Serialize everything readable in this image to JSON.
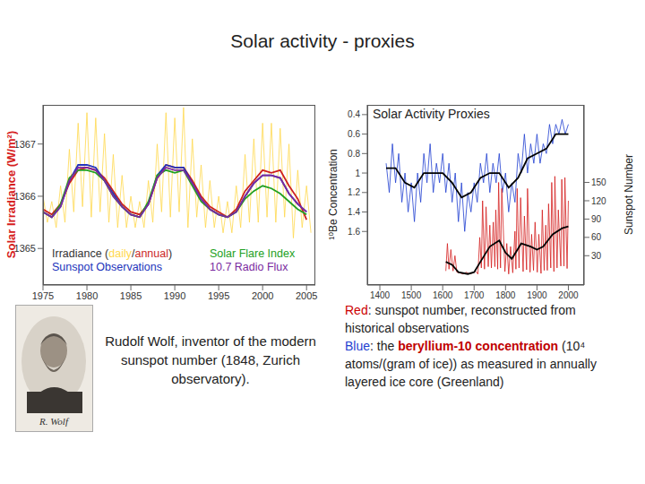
{
  "title": "Solar activity - proxies",
  "chart_data": [
    {
      "type": "line",
      "ylabel": "Solar Irradiance (W/m²)",
      "xlim": [
        1975,
        2006
      ],
      "xticks": [
        1975,
        1980,
        1985,
        1990,
        1995,
        2000,
        2005
      ],
      "ylim": [
        1364.3,
        1367.75
      ],
      "yticks": [
        1365,
        1366,
        1367
      ],
      "legend": "bottom",
      "legend_entries": [
        "Irradiance (daily/annual)",
        "Sunspot Observations",
        "Solar Flare Index",
        "10.7 Radio Flux"
      ],
      "series": [
        {
          "name": "daily",
          "color": "#ffd84d",
          "line_style": "thin",
          "x": [
            1975,
            1975.5,
            1976,
            1976.5,
            1977,
            1977.5,
            1978,
            1978.5,
            1979,
            1979.5,
            1980,
            1980.5,
            1981,
            1981.5,
            1982,
            1982.5,
            1983,
            1983.5,
            1984,
            1984.5,
            1985,
            1985.5,
            1986,
            1986.5,
            1987,
            1987.5,
            1988,
            1988.5,
            1989,
            1989.5,
            1990,
            1990.5,
            1991,
            1991.5,
            1992,
            1992.5,
            1993,
            1993.5,
            1994,
            1994.5,
            1995,
            1995.5,
            1996,
            1996.5,
            1997,
            1997.5,
            1998,
            1998.5,
            1999,
            1999.5,
            2000,
            2000.5,
            2001,
            2001.5,
            2002,
            2002.5,
            2003,
            2003.5,
            2004,
            2004.5,
            2005,
            2005.5
          ],
          "values": [
            1366.0,
            1365.5,
            1365.9,
            1365.4,
            1366.2,
            1365.5,
            1366.9,
            1365.7,
            1367.4,
            1365.8,
            1367.6,
            1365.6,
            1367.5,
            1365.7,
            1367.2,
            1365.5,
            1366.8,
            1365.4,
            1366.4,
            1365.4,
            1366.0,
            1365.4,
            1365.9,
            1365.4,
            1366.3,
            1365.5,
            1367.0,
            1365.7,
            1367.6,
            1365.6,
            1367.5,
            1365.7,
            1367.7,
            1365.4,
            1367.1,
            1365.6,
            1366.6,
            1365.4,
            1366.3,
            1365.4,
            1366.0,
            1365.3,
            1365.9,
            1365.3,
            1366.2,
            1365.4,
            1366.8,
            1365.5,
            1367.1,
            1365.5,
            1367.4,
            1365.6,
            1367.4,
            1365.5,
            1367.3,
            1365.6,
            1367.0,
            1365.2,
            1366.5,
            1365.4,
            1366.2,
            1365.3
          ]
        },
        {
          "name": "annual",
          "color": "#cc1f1f",
          "line_style": "solid",
          "x": [
            1975,
            1976,
            1977,
            1978,
            1979,
            1980,
            1981,
            1982,
            1983,
            1984,
            1985,
            1986,
            1987,
            1988,
            1989,
            1990,
            1991,
            1992,
            1993,
            1994,
            1995,
            1996,
            1997,
            1998,
            1999,
            2000,
            2001,
            2002,
            2003,
            2004,
            2005
          ],
          "values": [
            1365.75,
            1365.65,
            1365.85,
            1366.25,
            1366.5,
            1366.55,
            1366.5,
            1366.35,
            1366.1,
            1365.85,
            1365.7,
            1365.65,
            1365.85,
            1366.35,
            1366.6,
            1366.55,
            1366.55,
            1366.3,
            1366.0,
            1365.8,
            1365.7,
            1365.6,
            1365.75,
            1366.1,
            1366.3,
            1366.5,
            1366.45,
            1366.5,
            1366.2,
            1365.95,
            1365.55
          ]
        },
        {
          "name": "Sunspot Observations",
          "color": "#2233bb",
          "line_style": "solid",
          "x": [
            1975,
            1976,
            1977,
            1978,
            1979,
            1980,
            1981,
            1982,
            1983,
            1984,
            1985,
            1986,
            1987,
            1988,
            1989,
            1990,
            1991,
            1992,
            1993,
            1994,
            1995,
            1996,
            1997,
            1998,
            1999,
            2000,
            2001,
            2002,
            2003,
            2004,
            2005
          ],
          "values": [
            1365.7,
            1365.6,
            1365.8,
            1366.3,
            1366.6,
            1366.6,
            1366.55,
            1366.3,
            1366.05,
            1365.8,
            1365.65,
            1365.6,
            1365.85,
            1366.4,
            1366.6,
            1366.55,
            1366.55,
            1366.25,
            1365.95,
            1365.75,
            1365.65,
            1365.6,
            1365.7,
            1366.0,
            1366.25,
            1366.4,
            1366.4,
            1366.35,
            1366.05,
            1365.85,
            1365.7
          ]
        },
        {
          "name": "Solar Flare Index",
          "color": "#22a022",
          "line_style": "solid",
          "x": [
            1975,
            1976,
            1977,
            1978,
            1979,
            1980,
            1981,
            1982,
            1983,
            1984,
            1985,
            1986,
            1987,
            1988,
            1989,
            1990,
            1991,
            1992,
            1993,
            1994,
            1995,
            1996,
            1997,
            1998,
            1999,
            2000,
            2001,
            2002,
            2003,
            2004,
            2005
          ],
          "values": [
            1365.7,
            1365.6,
            1365.85,
            1366.35,
            1366.5,
            1366.5,
            1366.45,
            1366.3,
            1366.0,
            1365.8,
            1365.65,
            1365.6,
            1365.9,
            1366.4,
            1366.5,
            1366.45,
            1366.5,
            1366.2,
            1365.9,
            1365.75,
            1365.65,
            1365.6,
            1365.7,
            1365.95,
            1366.1,
            1366.2,
            1366.15,
            1366.05,
            1365.9,
            1365.75,
            1365.65
          ]
        },
        {
          "name": "10.7 Radio Flux",
          "color": "#7a2aa0",
          "line_style": "solid",
          "x": [
            1975,
            1976,
            1977,
            1978,
            1979,
            1980,
            1981,
            1982,
            1983,
            1984,
            1985,
            1986,
            1987,
            1988,
            1989,
            1990,
            1991,
            1992,
            1993,
            1994,
            1995,
            1996,
            1997,
            1998,
            1999,
            2000,
            2001,
            2002,
            2003,
            2004,
            2005
          ],
          "values": [
            1365.7,
            1365.6,
            1365.8,
            1366.3,
            1366.55,
            1366.55,
            1366.5,
            1366.3,
            1366.0,
            1365.8,
            1365.65,
            1365.6,
            1365.85,
            1366.35,
            1366.55,
            1366.5,
            1366.5,
            1366.25,
            1365.95,
            1365.75,
            1365.65,
            1365.6,
            1365.7,
            1366.0,
            1366.25,
            1366.4,
            1366.4,
            1366.35,
            1366.05,
            1365.85,
            1365.7
          ]
        }
      ]
    },
    {
      "type": "line",
      "title": "Solar Activity Proxies",
      "ylabel": "¹⁰Be Concentration",
      "y2label": "Sunspot Number",
      "xlim": [
        1360,
        2050
      ],
      "xticks": [
        1400,
        1500,
        1600,
        1700,
        1800,
        1900,
        2000
      ],
      "ylim": [
        2.15,
        0.3
      ],
      "yticks": [
        0.4,
        0.6,
        0.8,
        1,
        1.2,
        1.4,
        1.6
      ],
      "y2lim": [
        -18,
        277
      ],
      "y2ticks": [
        30,
        60,
        90,
        120,
        150
      ],
      "series": [
        {
          "color": "#1f3fd0",
          "line_style": "thin",
          "x": [
            1420,
            1430,
            1440,
            1450,
            1460,
            1470,
            1480,
            1490,
            1500,
            1510,
            1520,
            1530,
            1540,
            1550,
            1560,
            1570,
            1580,
            1590,
            1600,
            1610,
            1620,
            1630,
            1640,
            1650,
            1660,
            1670,
            1680,
            1690,
            1700,
            1710,
            1720,
            1730,
            1740,
            1750,
            1760,
            1770,
            1780,
            1790,
            1800,
            1810,
            1820,
            1830,
            1840,
            1850,
            1860,
            1870,
            1880,
            1890,
            1900,
            1910,
            1920,
            1930,
            1940,
            1950,
            1960,
            1970,
            1980,
            1990,
            2000
          ],
          "values": [
            0.9,
            1.2,
            0.7,
            1.1,
            0.8,
            1.3,
            1.0,
            1.4,
            1.1,
            1.5,
            1.0,
            1.3,
            0.8,
            1.1,
            0.7,
            1.2,
            0.9,
            1.1,
            0.8,
            1.2,
            0.9,
            1.3,
            1.0,
            1.5,
            1.1,
            1.6,
            1.2,
            1.4,
            1.1,
            1.3,
            0.9,
            1.1,
            0.8,
            1.2,
            0.9,
            1.1,
            0.8,
            1.2,
            1.0,
            1.4,
            1.1,
            1.3,
            0.8,
            1.0,
            0.6,
            1.0,
            0.7,
            0.9,
            0.6,
            0.9,
            0.7,
            0.8,
            0.5,
            0.7,
            0.5,
            0.6,
            0.45,
            0.6,
            0.5
          ]
        },
        {
          "color": "#000000",
          "line_style": "solid",
          "x": [
            1420,
            1450,
            1480,
            1510,
            1540,
            1570,
            1600,
            1630,
            1660,
            1690,
            1720,
            1750,
            1780,
            1810,
            1840,
            1870,
            1900,
            1930,
            1960,
            2000
          ],
          "values": [
            0.95,
            0.95,
            1.1,
            1.15,
            1.0,
            1.0,
            1.0,
            1.1,
            1.25,
            1.2,
            1.05,
            1.0,
            1.0,
            1.15,
            1.05,
            0.85,
            0.8,
            0.75,
            0.6,
            0.6
          ]
        },
        {
          "color": "#d42020",
          "line_style": "thin",
          "axis": "y2",
          "x": [
            1610,
            1615,
            1620,
            1626,
            1633,
            1639,
            1645,
            1655,
            1665,
            1675,
            1685,
            1695,
            1705,
            1712,
            1718,
            1723,
            1727,
            1733,
            1738,
            1745,
            1750,
            1755,
            1761,
            1766,
            1769,
            1775,
            1778,
            1784,
            1788,
            1798,
            1804,
            1810,
            1816,
            1823,
            1830,
            1833,
            1837,
            1843,
            1848,
            1856,
            1860,
            1867,
            1870,
            1878,
            1883,
            1889,
            1894,
            1901,
            1906,
            1913,
            1917,
            1923,
            1928,
            1933,
            1937,
            1944,
            1947,
            1954,
            1957,
            1964,
            1968,
            1976,
            1979,
            1986,
            1989,
            1996,
            2000
          ],
          "values": [
            5,
            50,
            8,
            40,
            5,
            30,
            3,
            2,
            0,
            3,
            0,
            2,
            5,
            0,
            60,
            10,
            120,
            8,
            110,
            12,
            80,
            10,
            85,
            12,
            105,
            8,
            150,
            10,
            140,
            4,
            50,
            0,
            45,
            2,
            70,
            8,
            140,
            10,
            125,
            4,
            95,
            7,
            140,
            3,
            65,
            6,
            85,
            3,
            65,
            1,
            105,
            6,
            80,
            6,
            115,
            10,
            150,
            4,
            160,
            10,
            105,
            13,
            155,
            13,
            158,
            9,
            120
          ]
        },
        {
          "color": "#000000",
          "line_style": "solid",
          "axis": "y2",
          "x": [
            1610,
            1630,
            1650,
            1680,
            1700,
            1720,
            1750,
            1780,
            1800,
            1820,
            1850,
            1880,
            1900,
            1920,
            1950,
            1980,
            2000
          ],
          "values": [
            20,
            15,
            3,
            0,
            3,
            20,
            45,
            55,
            35,
            25,
            50,
            45,
            40,
            45,
            65,
            75,
            78
          ]
        }
      ]
    }
  ],
  "portrait": {
    "caption": "Rudolf Wolf, inventor of the modern sunspot number (1848, Zurich observatory).",
    "signature": "R. Wolf"
  },
  "notes": [
    [
      {
        "text": "Red",
        "color": "#cc0000"
      },
      {
        "text": ":  sunspot number, reconstructed from historical observations"
      }
    ],
    [
      {
        "text": "Blue",
        "color": "#1f3fd0"
      },
      {
        "text": ":  the "
      },
      {
        "text": "beryllium-10 concentration",
        "color": "#c00000",
        "bold": true
      },
      {
        "text": " (10⁴ atoms/(gram of ice)) as measured in annually layered ice core (Greenland)"
      }
    ]
  ]
}
